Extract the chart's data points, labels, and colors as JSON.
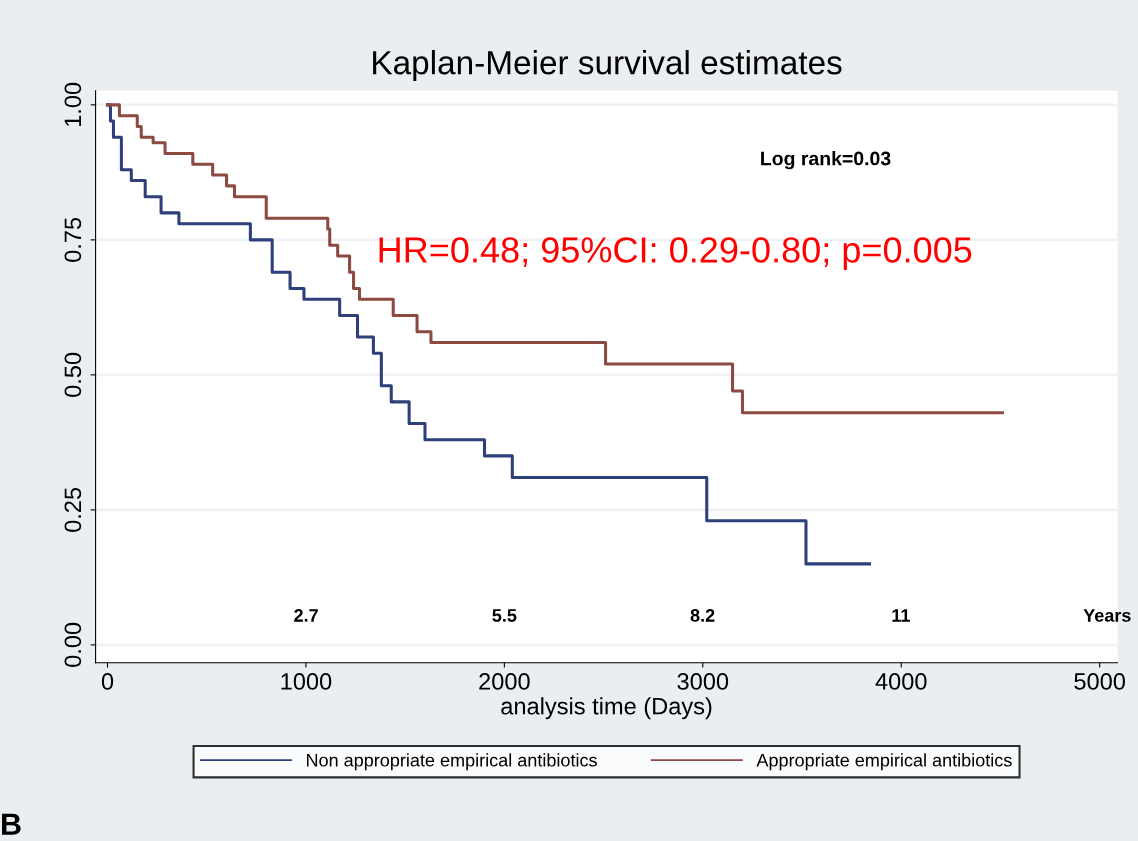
{
  "chart_data": {
    "type": "step",
    "title": "Kaplan-Meier survival estimates",
    "xlabel": "analysis time (Days)",
    "xlim": [
      -60,
      5090
    ],
    "xticks": [
      0,
      1000,
      2000,
      3000,
      4000,
      5000
    ],
    "ylim": [
      -0.033,
      1.026
    ],
    "yticks": [
      {
        "value": 0,
        "label": "0.00"
      },
      {
        "value": 0.25,
        "label": "0.25"
      },
      {
        "value": 0.5,
        "label": "0.50"
      },
      {
        "value": 0.75,
        "label": "0.75"
      },
      {
        "value": 1,
        "label": "1.00"
      }
    ],
    "grid": "y",
    "legend": "bottom",
    "line_style": "solid",
    "marker": "none",
    "series": [
      {
        "name": "Non appropriate empirical antibiotics",
        "color": "#2e3f7a",
        "x": [
          0,
          15,
          30,
          70,
          120,
          190,
          270,
          360,
          720,
          830,
          920,
          990,
          1170,
          1260,
          1340,
          1380,
          1430,
          1520,
          1600,
          1900,
          2040,
          3020,
          3520,
          3840
        ],
        "values": [
          1.0,
          0.97,
          0.94,
          0.88,
          0.86,
          0.83,
          0.8,
          0.78,
          0.75,
          0.69,
          0.66,
          0.64,
          0.61,
          0.57,
          0.54,
          0.48,
          0.45,
          0.41,
          0.38,
          0.35,
          0.31,
          0.23,
          0.15,
          0.15
        ]
      },
      {
        "name": "Appropriate empirical antibiotics",
        "color": "#8b4a42",
        "x": [
          0,
          60,
          150,
          170,
          230,
          290,
          430,
          530,
          600,
          640,
          800,
          1110,
          1120,
          1160,
          1220,
          1240,
          1270,
          1440,
          1560,
          1630,
          2510,
          3150,
          3200,
          4510
        ],
        "values": [
          1.0,
          0.98,
          0.96,
          0.94,
          0.93,
          0.91,
          0.89,
          0.87,
          0.85,
          0.83,
          0.79,
          0.77,
          0.74,
          0.72,
          0.69,
          0.66,
          0.64,
          0.61,
          0.58,
          0.56,
          0.52,
          0.47,
          0.43,
          0.43
        ]
      }
    ],
    "annotations": [
      "Log rank=0.03",
      "HR=0.48; 95%CI: 0.29-0.80; p=0.005",
      "2.7",
      "5.5",
      "8.2",
      "11",
      "Years",
      "B"
    ]
  }
}
